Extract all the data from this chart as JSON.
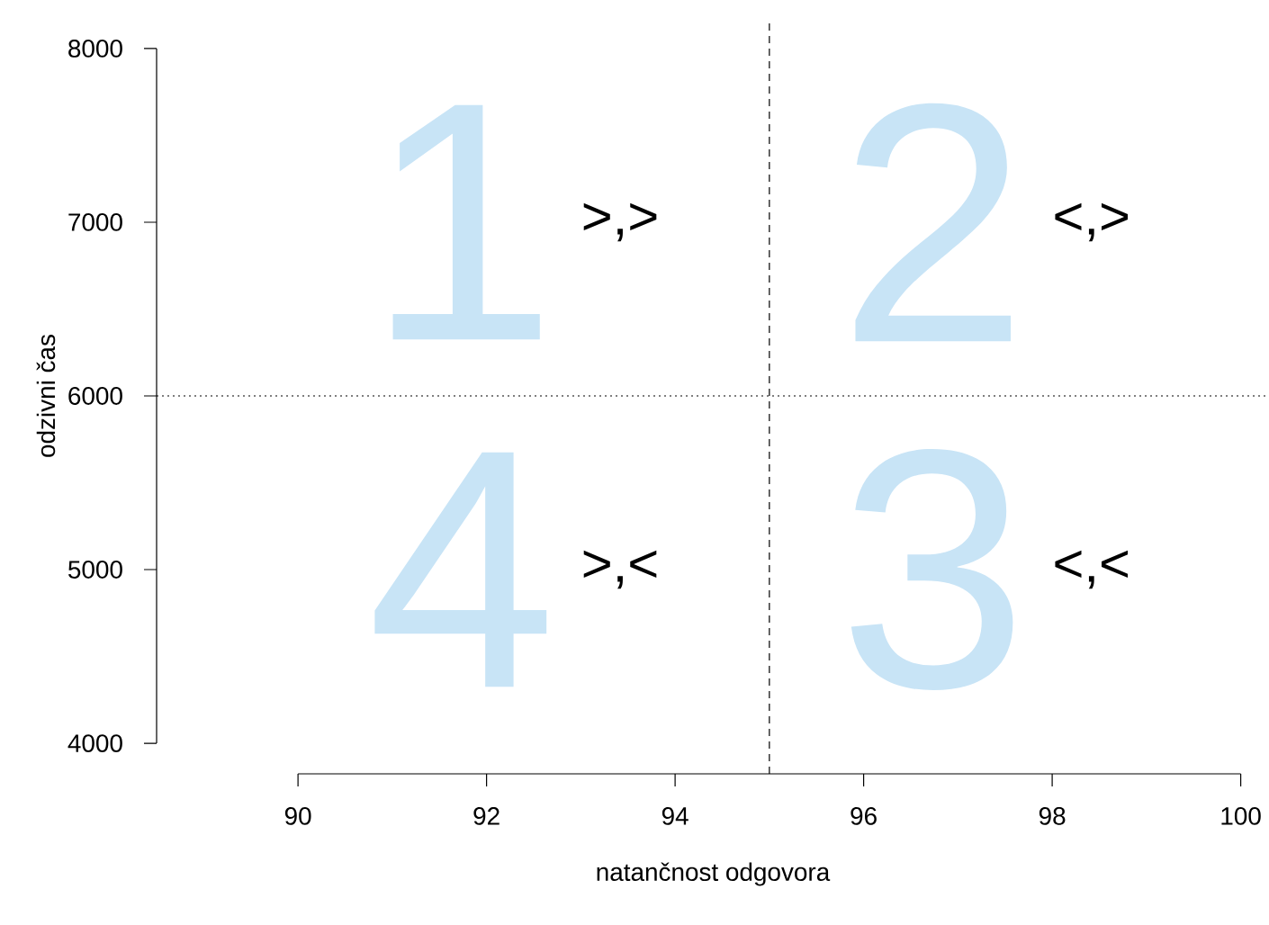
{
  "chart_data": {
    "type": "scatter",
    "xlabel": "natančnost odgovora",
    "ylabel": "odzivni čas",
    "xlim": [
      88.5,
      100.3
    ],
    "ylim": [
      3824,
      8176
    ],
    "xticks": [
      90,
      92,
      94,
      96,
      98,
      100
    ],
    "yticks": [
      4000,
      5000,
      6000,
      7000,
      8000
    ],
    "ref_lines": [
      {
        "axis": "x",
        "value": 95,
        "line_style": "dashed"
      },
      {
        "axis": "y",
        "value": 6000,
        "line_style": "dotted"
      }
    ],
    "annotations": [
      "1",
      ">,>",
      "2",
      "<,>",
      "4",
      ">,<",
      "3",
      "<,<"
    ]
  }
}
